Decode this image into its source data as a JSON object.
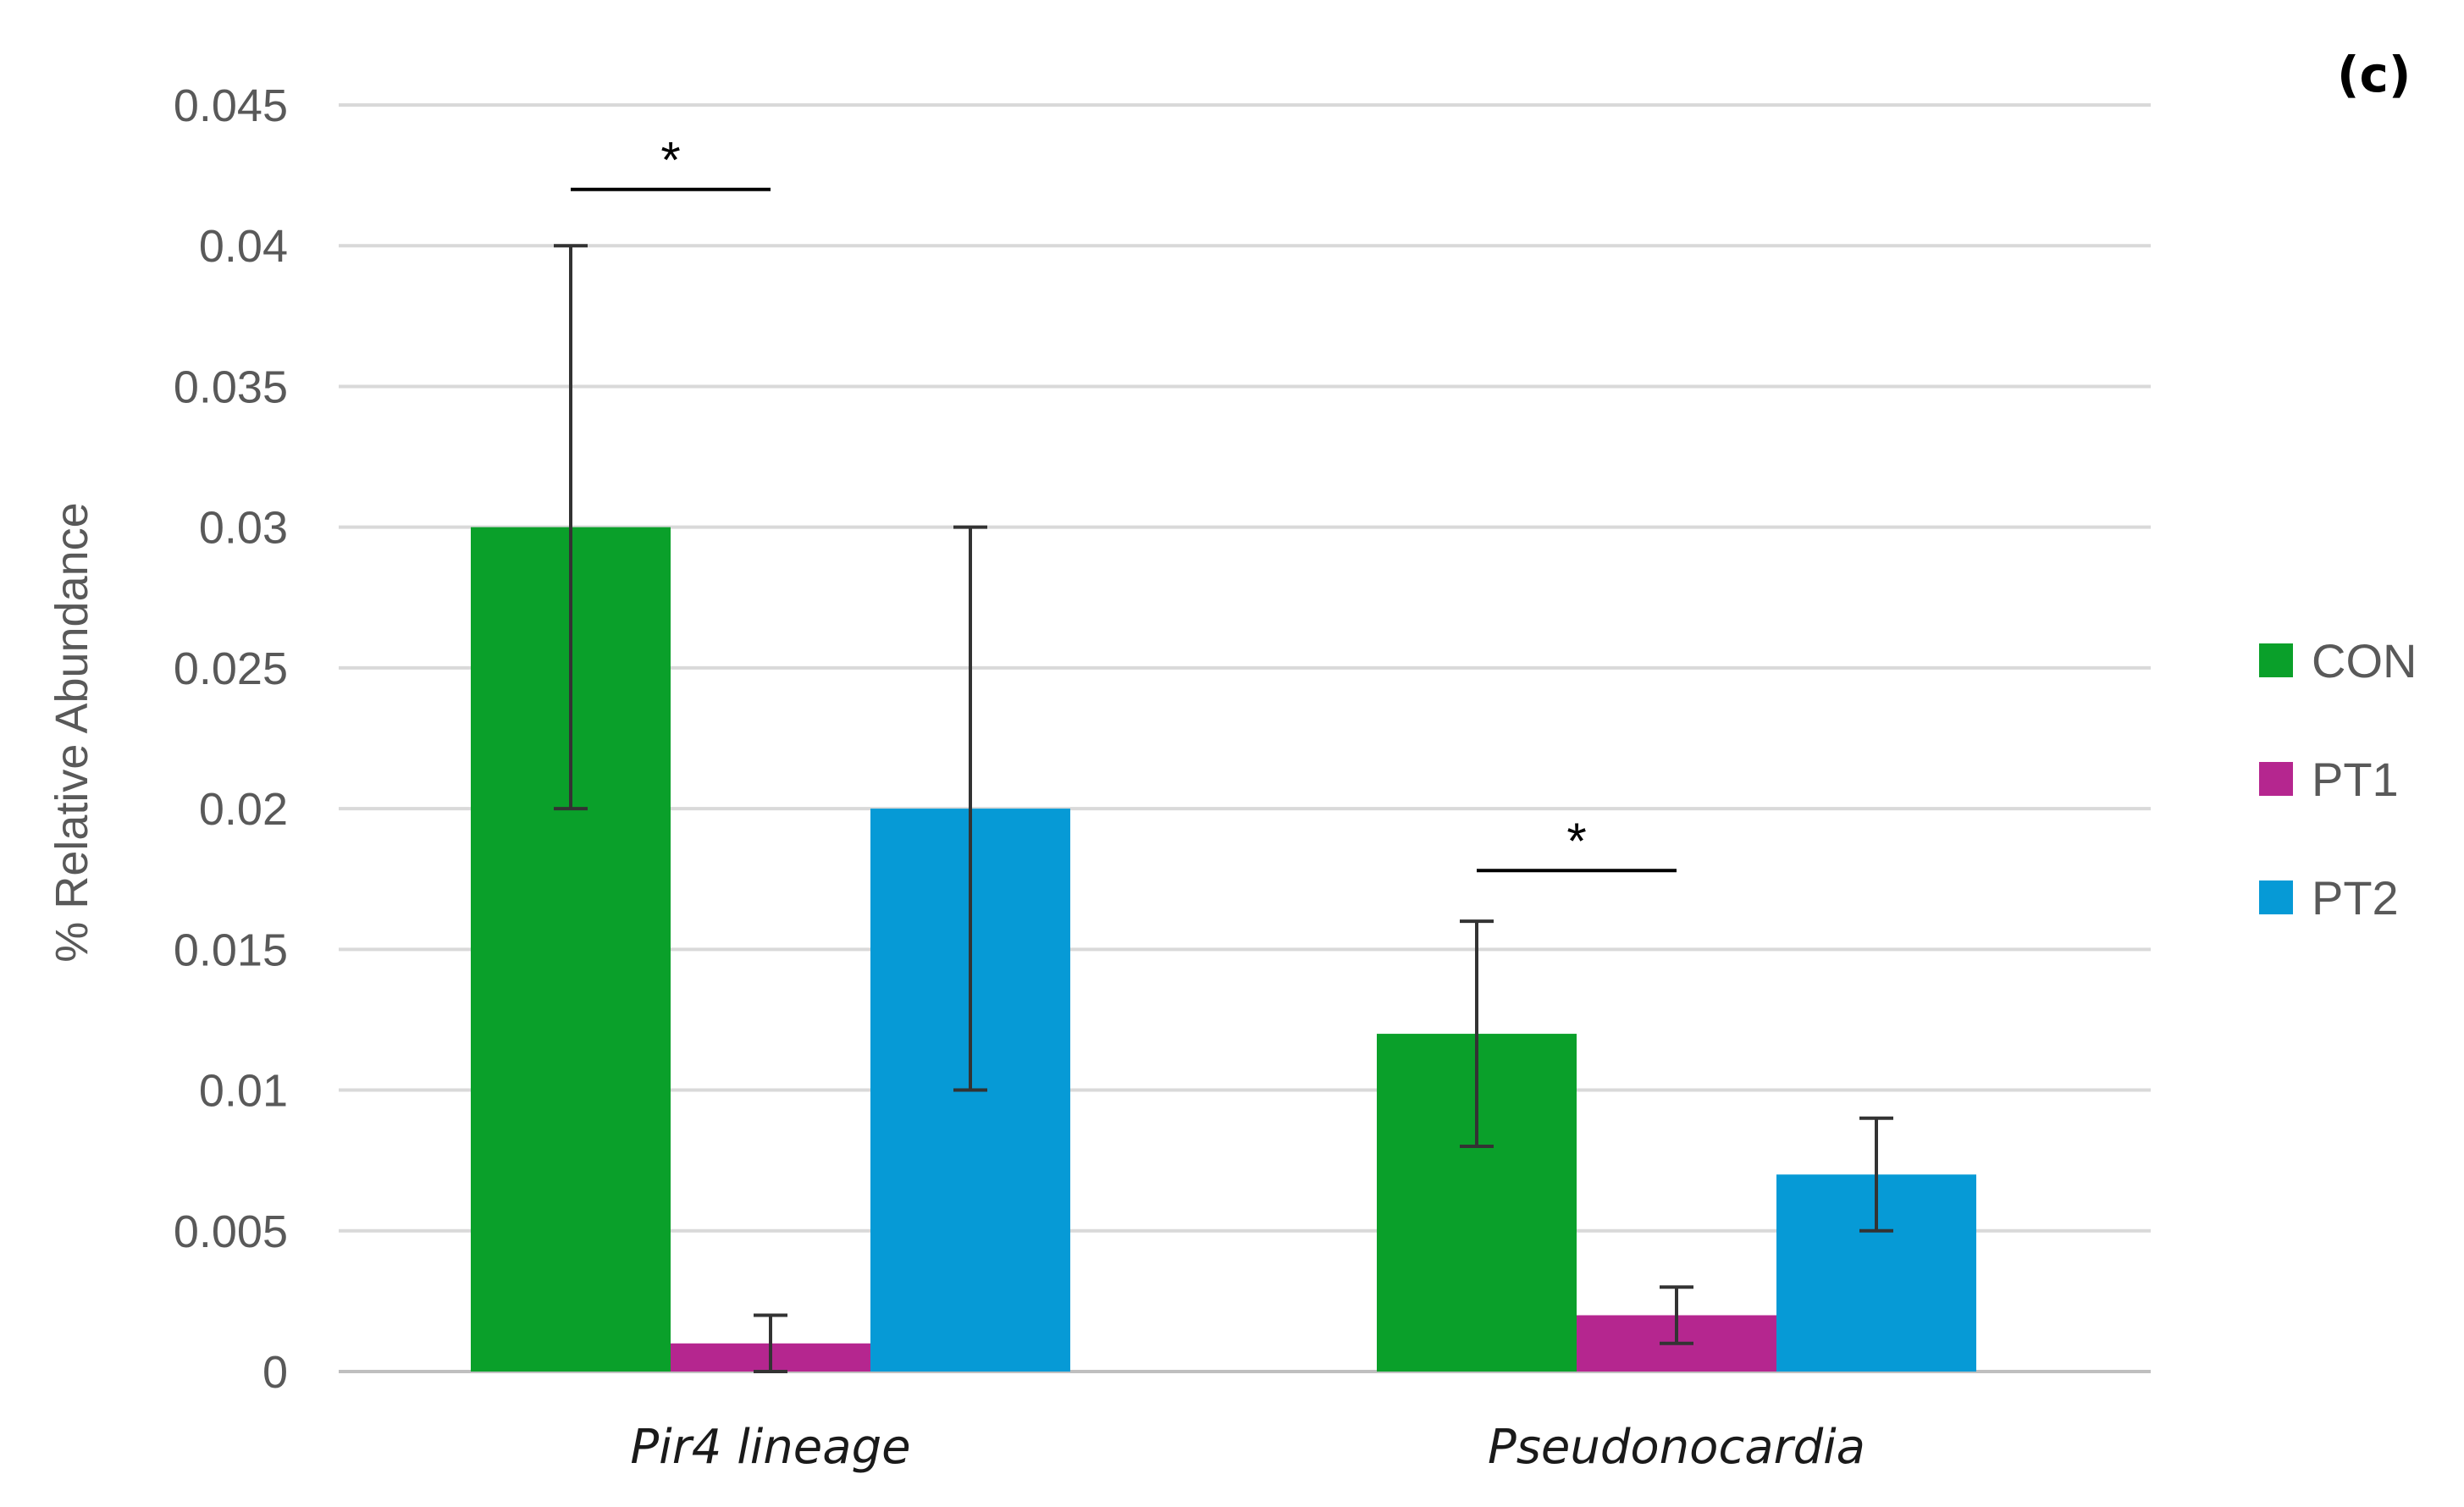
{
  "chart_data": {
    "type": "bar",
    "panel_label": "(c)",
    "ylabel": "% Relative Abundance",
    "xlabel": "",
    "ylim": [
      0,
      0.045
    ],
    "yticks": [
      0,
      0.005,
      0.01,
      0.015,
      0.02,
      0.025,
      0.03,
      0.035,
      0.04,
      0.045
    ],
    "ytick_labels": [
      "0",
      "0.005",
      "0.01",
      "0.015",
      "0.02",
      "0.025",
      "0.03",
      "0.035",
      "0.04",
      "0.045"
    ],
    "grid": true,
    "categories": [
      "Pir4 lineage",
      "Pseudonocardia"
    ],
    "series": [
      {
        "name": "CON",
        "color": "#0aa02a",
        "values": [
          0.03,
          0.012
        ],
        "errors": [
          0.01,
          0.004
        ]
      },
      {
        "name": "PT1",
        "color": "#b5268f",
        "values": [
          0.001,
          0.002
        ],
        "errors": [
          0.001,
          0.001
        ]
      },
      {
        "name": "PT2",
        "color": "#069ad6",
        "values": [
          0.02,
          0.007
        ],
        "errors": [
          0.01,
          0.002
        ]
      }
    ],
    "legend_position": "right",
    "significance": [
      {
        "category_index": 0,
        "series_from": 0,
        "series_to": 1,
        "level": 0.042,
        "label": "*"
      },
      {
        "category_index": 1,
        "series_from": 0,
        "series_to": 1,
        "level": 0.0178,
        "label": "*"
      }
    ]
  }
}
